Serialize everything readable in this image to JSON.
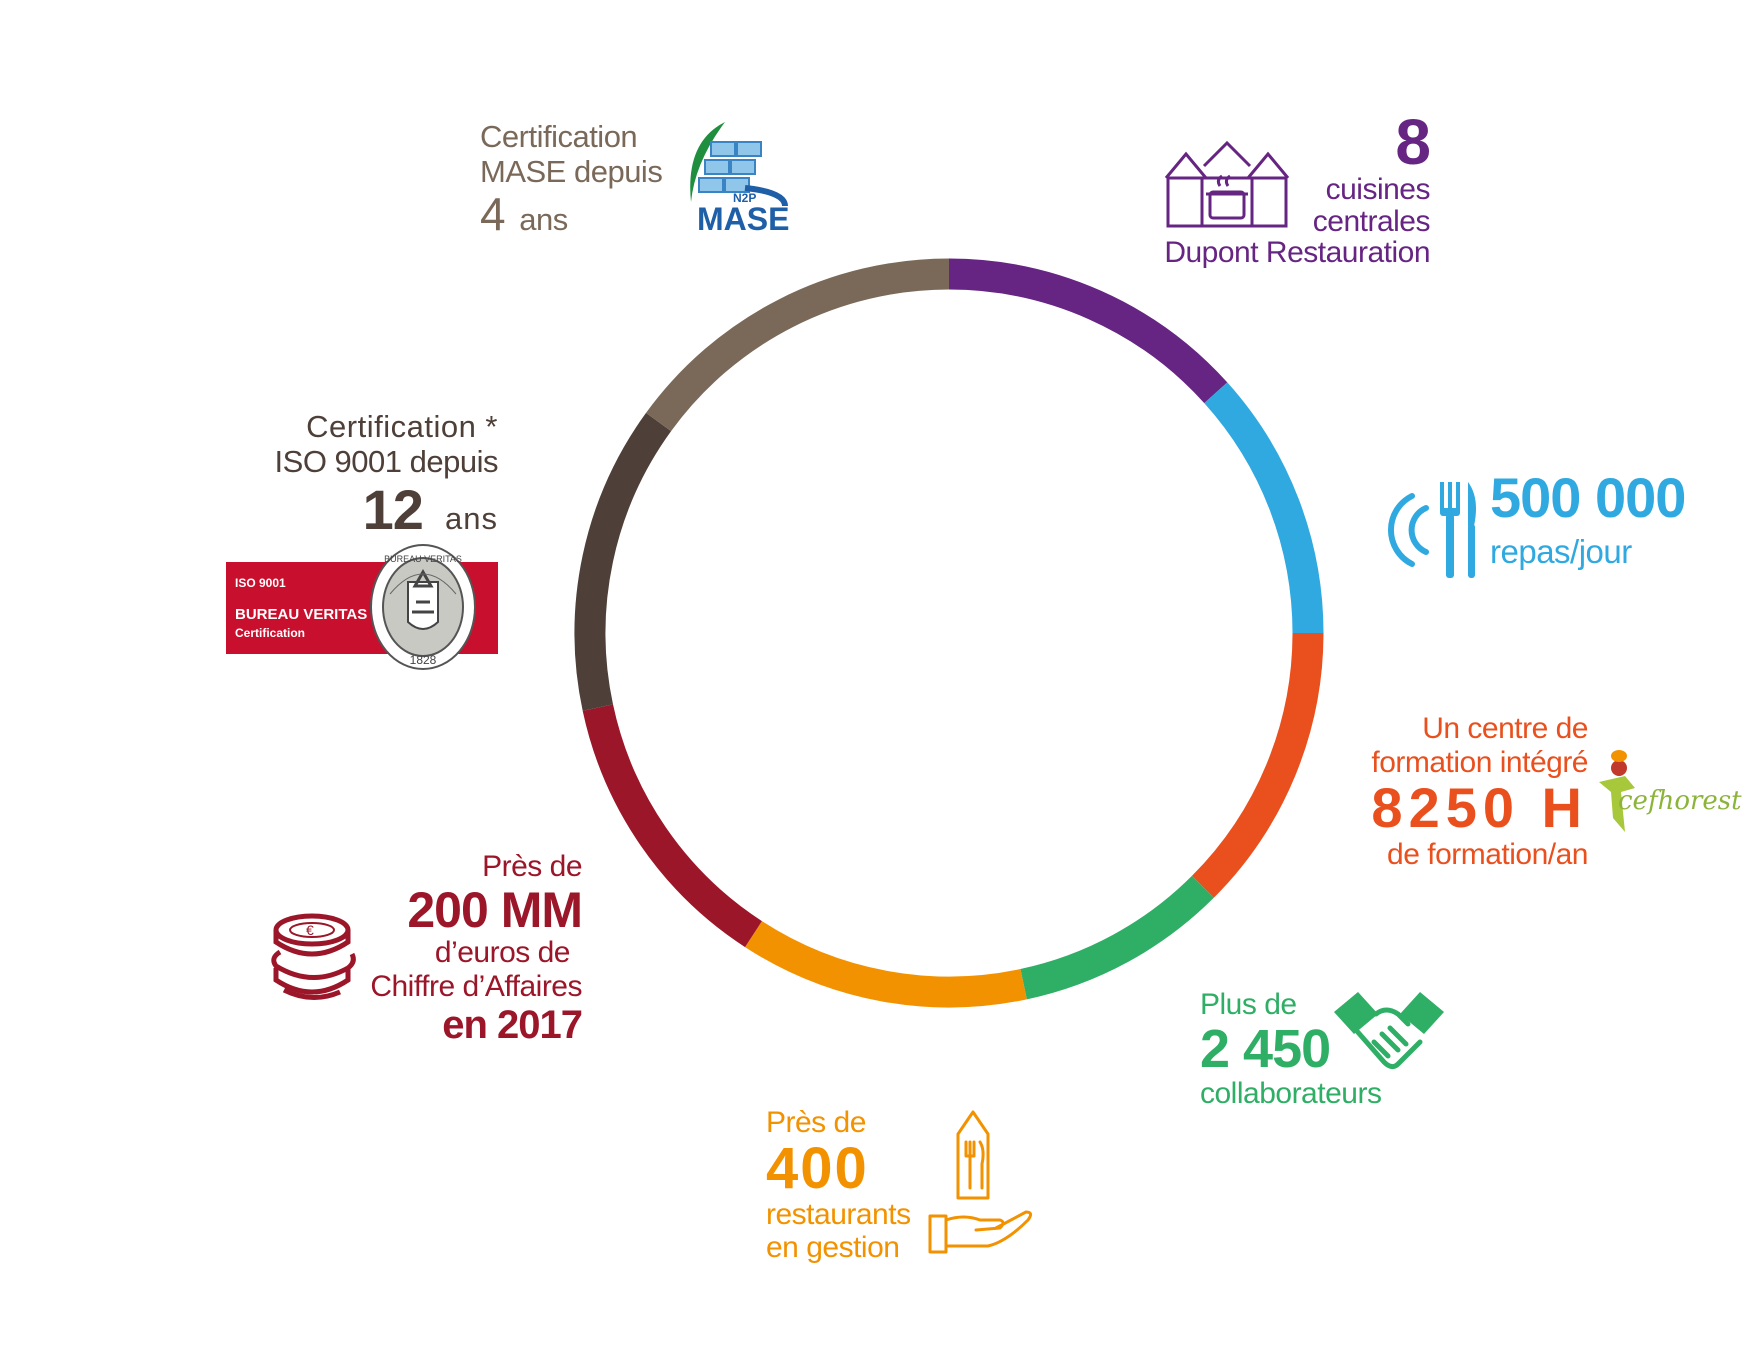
{
  "colors": {
    "purple": "#662483",
    "blue": "#2fa9e0",
    "orange": "#e9501e",
    "green": "#2fae66",
    "amber": "#f39200",
    "crimson": "#9b1629",
    "dark": "#4e4038",
    "taupe": "#7a6958",
    "bureau_veritas_red": "#c8102e"
  },
  "ring_segments": [
    {
      "color": "#662483",
      "start_deg": 0,
      "end_deg": 48
    },
    {
      "color": "#2fa9e0",
      "start_deg": 48,
      "end_deg": 90
    },
    {
      "color": "#e9501e",
      "start_deg": 90,
      "end_deg": 135
    },
    {
      "color": "#2fae66",
      "start_deg": 135,
      "end_deg": 168
    },
    {
      "color": "#f39200",
      "start_deg": 168,
      "end_deg": 213
    },
    {
      "color": "#9b1629",
      "start_deg": 213,
      "end_deg": 258
    },
    {
      "color": "#4e4038",
      "start_deg": 258,
      "end_deg": 306
    },
    {
      "color": "#7a6958",
      "start_deg": 306,
      "end_deg": 360
    }
  ],
  "kitchens": {
    "number": "8",
    "line1": "cuisines",
    "line2": "centrales",
    "line3": "Dupont Restauration",
    "icon": "kitchen-houses-pot-icon"
  },
  "meals": {
    "number": "500 000",
    "unit": "repas/jour",
    "icon": "plate-fork-knife-icon"
  },
  "training": {
    "line1": "Un centre de",
    "line2": "formation intégré",
    "hours": "8250 H",
    "line4": "de formation/an",
    "logo_text": "cefhorest",
    "icon": "cefhorest-logo"
  },
  "staff": {
    "prefix": "Plus de",
    "number": "2 450",
    "unit": "collaborateurs",
    "icon": "handshake-icon"
  },
  "restaurants": {
    "prefix": "Près de",
    "number": "400",
    "line3": "restaurants",
    "line4": "en gestion",
    "icon": "hand-cutlery-icon"
  },
  "revenue": {
    "prefix": "Près de",
    "number": "200 MM",
    "line3": "d’euros de",
    "line4": "Chiffre d’Affaires",
    "year": "en 2017",
    "icon": "coins-stack-icon"
  },
  "iso": {
    "line1": "Certification *",
    "line2": "ISO 9001 depuis",
    "years": "12",
    "years_unit": "ans",
    "badge_line1": "ISO 9001",
    "badge_line2": "BUREAU VERITAS",
    "badge_line3": "Certification",
    "seal_top": "BUREAU VERITAS",
    "seal_year": "1828",
    "icon": "bureau-veritas-seal"
  },
  "mase": {
    "line1": "Certification",
    "line2": "MASE depuis",
    "years": "4",
    "years_unit": "ans",
    "logo_small": "N2P",
    "logo_main": "MASE",
    "icon": "mase-logo"
  }
}
